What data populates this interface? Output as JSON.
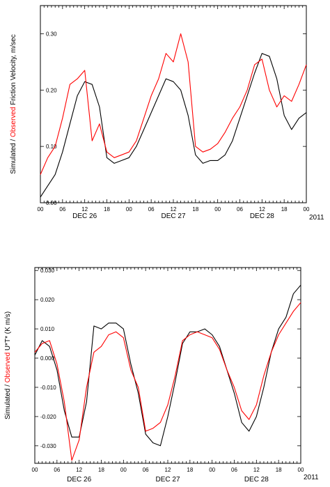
{
  "chart_data": [
    {
      "type": "line",
      "ylabel_parts": {
        "simulated": "Simulated",
        "sep": " / ",
        "observed": "Observed",
        "quantity": "  Friction Velocity, m/sec"
      },
      "yticks": [
        "0.00",
        "0.10",
        "0.20",
        "0.30"
      ],
      "ylim": [
        0.0,
        0.35
      ],
      "xticks": [
        "00",
        "06",
        "12",
        "18",
        "00",
        "06",
        "12",
        "18",
        "00",
        "06",
        "12",
        "18",
        "00"
      ],
      "xlim": [
        0,
        72
      ],
      "date_labels": [
        "DEC 26",
        "DEC 27",
        "DEC 28"
      ],
      "year_label": "2011",
      "colors": {
        "simulated": "#000000",
        "observed": "#ff0000"
      },
      "series": [
        {
          "name": "Simulated",
          "x": [
            0,
            2,
            4,
            6,
            8,
            10,
            12,
            14,
            16,
            18,
            20,
            22,
            24,
            26,
            28,
            30,
            32,
            34,
            36,
            38,
            40,
            42,
            44,
            46,
            48,
            50,
            52,
            54,
            56,
            58,
            60,
            62,
            64,
            66,
            68,
            70,
            72
          ],
          "y": [
            0.01,
            0.03,
            0.05,
            0.09,
            0.14,
            0.19,
            0.215,
            0.21,
            0.17,
            0.08,
            0.07,
            0.075,
            0.08,
            0.1,
            0.13,
            0.16,
            0.19,
            0.22,
            0.215,
            0.2,
            0.155,
            0.085,
            0.07,
            0.075,
            0.075,
            0.085,
            0.11,
            0.15,
            0.19,
            0.23,
            0.265,
            0.26,
            0.22,
            0.155,
            0.13,
            0.15,
            0.16
          ]
        },
        {
          "name": "Observed",
          "x": [
            0,
            2,
            4,
            6,
            8,
            10,
            12,
            14,
            16,
            18,
            20,
            22,
            24,
            26,
            28,
            30,
            32,
            34,
            36,
            38,
            40,
            42,
            44,
            46,
            48,
            50,
            52,
            54,
            56,
            58,
            60,
            62,
            64,
            66,
            68,
            70,
            72
          ],
          "y": [
            0.05,
            0.08,
            0.1,
            0.15,
            0.21,
            0.22,
            0.235,
            0.11,
            0.14,
            0.09,
            0.08,
            0.085,
            0.09,
            0.11,
            0.15,
            0.19,
            0.22,
            0.265,
            0.25,
            0.3,
            0.25,
            0.1,
            0.09,
            0.095,
            0.105,
            0.125,
            0.15,
            0.17,
            0.2,
            0.245,
            0.255,
            0.2,
            0.17,
            0.19,
            0.18,
            0.21,
            0.245
          ]
        }
      ]
    },
    {
      "type": "line",
      "ylabel_parts": {
        "simulated": "Simulated",
        "sep": " / ",
        "observed": "Observed",
        "quantity": "  U*T*      (K m/s)"
      },
      "yticks": [
        "-0.030",
        "-0.020",
        "-0.010",
        "0.000",
        "0.010",
        "0.020",
        "0.030"
      ],
      "ylim": [
        -0.036,
        0.031
      ],
      "xticks": [
        "00",
        "06",
        "12",
        "18",
        "00",
        "06",
        "12",
        "18",
        "00",
        "06",
        "12",
        "18",
        "00"
      ],
      "xlim": [
        0,
        72
      ],
      "date_labels": [
        "DEC 26",
        "DEC 27",
        "DEC 28"
      ],
      "year_label": "2011",
      "colors": {
        "simulated": "#000000",
        "observed": "#ff0000"
      },
      "series": [
        {
          "name": "Simulated",
          "x": [
            0,
            2,
            4,
            6,
            8,
            10,
            12,
            14,
            16,
            18,
            20,
            22,
            24,
            26,
            28,
            30,
            32,
            34,
            36,
            38,
            40,
            42,
            44,
            46,
            48,
            50,
            52,
            54,
            56,
            58,
            60,
            62,
            64,
            66,
            68,
            70,
            72
          ],
          "y": [
            0.001,
            0.006,
            0.004,
            -0.004,
            -0.018,
            -0.027,
            -0.027,
            -0.015,
            0.011,
            0.01,
            0.012,
            0.012,
            0.01,
            -0.002,
            -0.012,
            -0.026,
            -0.029,
            -0.03,
            -0.02,
            -0.008,
            0.005,
            0.009,
            0.009,
            0.01,
            0.008,
            0.004,
            -0.004,
            -0.012,
            -0.022,
            -0.025,
            -0.02,
            -0.01,
            0.002,
            0.01,
            0.014,
            0.022,
            0.025
          ]
        },
        {
          "name": "Observed",
          "x": [
            0,
            2,
            4,
            6,
            8,
            10,
            12,
            14,
            16,
            18,
            20,
            22,
            24,
            26,
            28,
            30,
            32,
            34,
            36,
            38,
            40,
            42,
            44,
            46,
            48,
            50,
            52,
            54,
            56,
            58,
            60,
            62,
            64,
            66,
            68,
            70,
            72
          ],
          "y": [
            0.002,
            0.005,
            0.006,
            -0.002,
            -0.015,
            -0.035,
            -0.028,
            -0.01,
            0.002,
            0.004,
            0.008,
            0.009,
            0.007,
            -0.004,
            -0.01,
            -0.025,
            -0.024,
            -0.022,
            -0.016,
            -0.006,
            0.006,
            0.008,
            0.009,
            0.008,
            0.007,
            0.003,
            -0.004,
            -0.01,
            -0.018,
            -0.021,
            -0.016,
            -0.006,
            0.002,
            0.008,
            0.012,
            0.016,
            0.019
          ]
        }
      ]
    }
  ]
}
